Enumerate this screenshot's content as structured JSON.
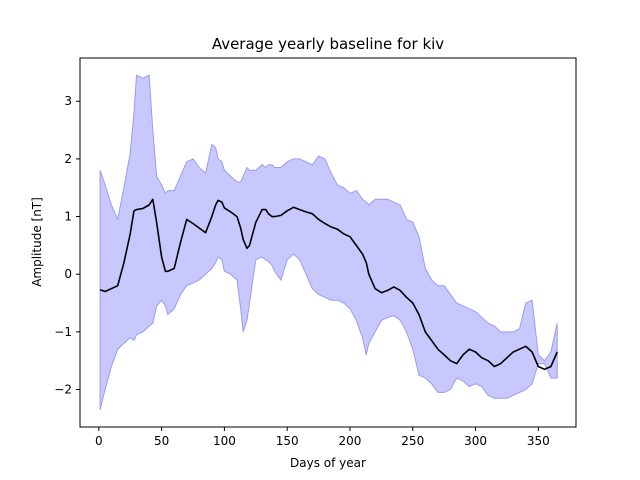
{
  "chart_data": {
    "type": "area",
    "title": "Average yearly baseline for kiv",
    "xlabel": "Days of year",
    "ylabel": "Amplitude [nT]",
    "xlim": [
      -15,
      380
    ],
    "ylim": [
      -2.65,
      3.75
    ],
    "xticks": [
      0,
      50,
      100,
      150,
      200,
      250,
      300,
      350
    ],
    "yticks": [
      -2,
      -1,
      0,
      1,
      2,
      3
    ],
    "x": [
      1,
      5,
      10,
      15,
      20,
      25,
      28,
      30,
      35,
      40,
      43,
      46,
      50,
      53,
      55,
      60,
      65,
      70,
      75,
      80,
      85,
      90,
      93,
      95,
      98,
      100,
      105,
      110,
      113,
      115,
      118,
      120,
      125,
      130,
      133,
      135,
      138,
      140,
      145,
      150,
      155,
      160,
      165,
      170,
      175,
      180,
      185,
      190,
      195,
      200,
      205,
      210,
      213,
      215,
      220,
      225,
      230,
      235,
      240,
      245,
      250,
      255,
      260,
      265,
      270,
      275,
      280,
      285,
      290,
      295,
      300,
      305,
      310,
      315,
      320,
      325,
      330,
      335,
      340,
      345,
      350,
      355,
      360,
      365
    ],
    "series": [
      {
        "values": [
          -0.27,
          -0.3,
          -0.25,
          -0.2,
          0.2,
          0.7,
          1.1,
          1.12,
          1.14,
          1.2,
          1.3,
          0.9,
          0.3,
          0.05,
          0.05,
          0.1,
          0.55,
          0.95,
          0.88,
          0.8,
          0.72,
          1.0,
          1.2,
          1.28,
          1.25,
          1.15,
          1.08,
          1.0,
          0.8,
          0.6,
          0.45,
          0.5,
          0.9,
          1.12,
          1.12,
          1.05,
          1.0,
          1.0,
          1.02,
          1.1,
          1.16,
          1.12,
          1.08,
          1.05,
          0.95,
          0.88,
          0.82,
          0.78,
          0.7,
          0.65,
          0.5,
          0.35,
          0.2,
          0.0,
          -0.25,
          -0.32,
          -0.28,
          -0.22,
          -0.28,
          -0.4,
          -0.5,
          -0.7,
          -1.0,
          -1.15,
          -1.3,
          -1.4,
          -1.5,
          -1.55,
          -1.4,
          -1.3,
          -1.35,
          -1.45,
          -1.5,
          -1.6,
          -1.55,
          -1.45,
          -1.35,
          -1.3,
          -1.25,
          -1.35,
          -1.6,
          -1.65,
          -1.6,
          -1.35
        ]
      }
    ],
    "band": {
      "lower": [
        -2.35,
        -2.0,
        -1.6,
        -1.3,
        -1.2,
        -1.1,
        -1.15,
        -1.05,
        -1.0,
        -0.9,
        -0.85,
        -0.55,
        -0.45,
        -0.55,
        -0.7,
        -0.6,
        -0.35,
        -0.2,
        -0.15,
        -0.1,
        0.0,
        0.1,
        0.2,
        0.3,
        0.25,
        0.05,
        0.0,
        -0.1,
        -0.6,
        -1.0,
        -0.8,
        -0.5,
        0.25,
        0.3,
        0.25,
        0.22,
        0.15,
        0.05,
        -0.1,
        0.25,
        0.35,
        0.25,
        0.0,
        -0.25,
        -0.35,
        -0.4,
        -0.45,
        -0.45,
        -0.5,
        -0.6,
        -0.8,
        -1.1,
        -1.4,
        -1.2,
        -1.0,
        -0.8,
        -0.75,
        -0.72,
        -0.8,
        -1.0,
        -1.3,
        -1.75,
        -1.8,
        -1.9,
        -2.05,
        -2.05,
        -2.0,
        -1.8,
        -1.85,
        -1.95,
        -1.9,
        -1.95,
        -2.1,
        -2.15,
        -2.15,
        -2.15,
        -2.1,
        -2.05,
        -2.0,
        -1.9,
        -1.55,
        -1.55,
        -1.8,
        -1.8
      ],
      "upper": [
        1.8,
        1.55,
        1.2,
        0.95,
        1.5,
        2.1,
        2.8,
        3.45,
        3.4,
        3.45,
        2.5,
        1.7,
        1.55,
        1.4,
        1.45,
        1.45,
        1.7,
        1.95,
        2.0,
        1.85,
        1.75,
        2.25,
        2.2,
        2.0,
        1.95,
        1.8,
        1.7,
        1.6,
        1.6,
        1.7,
        1.85,
        1.8,
        1.8,
        1.9,
        1.85,
        1.9,
        1.9,
        1.85,
        1.85,
        1.95,
        2.0,
        2.0,
        1.95,
        1.9,
        2.05,
        2.0,
        1.75,
        1.55,
        1.5,
        1.4,
        1.45,
        1.3,
        1.25,
        1.2,
        1.3,
        1.3,
        1.3,
        1.25,
        1.2,
        0.95,
        0.9,
        0.65,
        0.1,
        -0.1,
        -0.2,
        -0.2,
        -0.35,
        -0.5,
        -0.55,
        -0.6,
        -0.65,
        -0.75,
        -0.85,
        -0.9,
        -1.0,
        -1.0,
        -1.0,
        -0.95,
        -0.5,
        -0.45,
        -1.4,
        -1.5,
        -1.35,
        -0.85
      ]
    },
    "colors": {
      "line": "#000000",
      "band_fill": "#c8c8ff",
      "band_edge": "#9b9bf0"
    },
    "grid": false
  }
}
